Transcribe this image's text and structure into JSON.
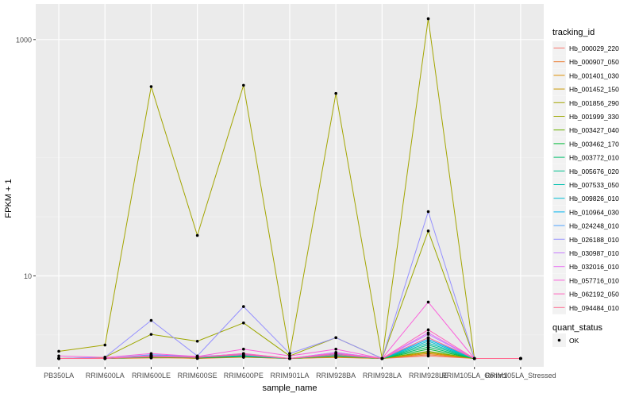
{
  "chart_data": {
    "type": "line",
    "title": "",
    "xlabel": "sample_name",
    "ylabel": "FPKM + 1",
    "y_scale": "log10",
    "ylim": [
      1.7,
      2000
    ],
    "y_ticks": [
      10,
      1000
    ],
    "categories": [
      "PB350LA",
      "RRIM600LA",
      "RRIM600LE",
      "RRIM600SE",
      "RRIM600PE",
      "RRIM901LA",
      "RRIM928BA",
      "RRIM928LA",
      "RRIM928LE",
      "RRIM105LA_Control",
      "RRIM105LA_Stressed"
    ],
    "legend_title": "tracking_id",
    "legend2_title": "quant_status",
    "legend2_items": [
      "OK"
    ],
    "legend_position": "right",
    "series": [
      {
        "name": "Hb_000029_220",
        "color": "#F8766D",
        "values": [
          2,
          2,
          2.02,
          2.03,
          2.05,
          2,
          2.04,
          2,
          2.1,
          2,
          2
        ]
      },
      {
        "name": "Hb_000907_050",
        "color": "#EC823C",
        "values": [
          2,
          2,
          2.05,
          2,
          2.05,
          2,
          2.08,
          2,
          2.15,
          2,
          2
        ]
      },
      {
        "name": "Hb_001401_030",
        "color": "#DD8D00",
        "values": [
          2,
          2,
          2.03,
          2.02,
          2.06,
          2,
          2.06,
          2,
          2.2,
          2,
          2
        ]
      },
      {
        "name": "Hb_001452_150",
        "color": "#CA9700",
        "values": [
          2,
          2.02,
          2.05,
          2.04,
          2.08,
          2,
          2.05,
          2,
          2.25,
          2,
          2
        ]
      },
      {
        "name": "Hb_001856_290",
        "color": "#A3A500",
        "values": [
          2.3,
          2.6,
          400,
          22,
          410,
          2.2,
          350,
          2,
          1500,
          2,
          2
        ]
      },
      {
        "name": "Hb_001999_330",
        "color": "#9DA700",
        "values": [
          2,
          2.05,
          3.2,
          2.8,
          4.0,
          2.1,
          3.0,
          2,
          24,
          2,
          2
        ]
      },
      {
        "name": "Hb_003427_040",
        "color": "#6BB100",
        "values": [
          2,
          2,
          2.05,
          2.03,
          2.1,
          2,
          2.1,
          2,
          2.3,
          2,
          2
        ]
      },
      {
        "name": "Hb_003462_170",
        "color": "#00BA38",
        "values": [
          2,
          2,
          2.08,
          2.02,
          2.08,
          2,
          2.12,
          2,
          2.4,
          2,
          2
        ]
      },
      {
        "name": "Hb_003772_010",
        "color": "#00BE6C",
        "values": [
          2,
          2,
          2.06,
          2.05,
          2.1,
          2,
          2.1,
          2,
          2.5,
          2,
          2
        ]
      },
      {
        "name": "Hb_005676_020",
        "color": "#00C08E",
        "values": [
          2,
          2,
          2.1,
          2.04,
          2.12,
          2,
          2.15,
          2,
          2.6,
          2,
          2
        ]
      },
      {
        "name": "Hb_007533_050",
        "color": "#00C0AF",
        "values": [
          2,
          2,
          2.07,
          2.06,
          2.1,
          2,
          2.12,
          2,
          2.7,
          2,
          2
        ]
      },
      {
        "name": "Hb_009826_010",
        "color": "#00BCD4",
        "values": [
          2,
          2,
          2.1,
          2.05,
          2.12,
          2,
          2.18,
          2,
          2.8,
          2,
          2
        ]
      },
      {
        "name": "Hb_010964_030",
        "color": "#00B4F0",
        "values": [
          2,
          2,
          2.12,
          2.06,
          2.15,
          2,
          2.2,
          2,
          2.9,
          2,
          2
        ]
      },
      {
        "name": "Hb_024248_010",
        "color": "#4DA3FF",
        "values": [
          2,
          2,
          2.15,
          2.08,
          2.18,
          2,
          2.25,
          2,
          3.0,
          2,
          2
        ]
      },
      {
        "name": "Hb_026188_010",
        "color": "#9590FF",
        "values": [
          2,
          2.05,
          4.2,
          2.1,
          5.5,
          2.2,
          3.0,
          2,
          35,
          2,
          2
        ]
      },
      {
        "name": "Hb_030987_010",
        "color": "#C77CFF",
        "values": [
          2,
          2,
          2.1,
          2.05,
          2.15,
          2,
          2.2,
          2,
          3.2,
          2,
          2
        ]
      },
      {
        "name": "Hb_032016_010",
        "color": "#E76BF3",
        "values": [
          2,
          2,
          2.12,
          2.05,
          2.2,
          2,
          2.25,
          2,
          3.3,
          2,
          2
        ]
      },
      {
        "name": "Hb_057716_010",
        "color": "#FA62DB",
        "values": [
          2.1,
          2.04,
          2.2,
          2.08,
          2.4,
          2.1,
          2.4,
          2,
          6.0,
          2,
          2
        ]
      },
      {
        "name": "Hb_062192_050",
        "color": "#FF62BC",
        "values": [
          2,
          2,
          2.1,
          2.05,
          2.2,
          2,
          2.2,
          2,
          3.5,
          2,
          2
        ]
      },
      {
        "name": "Hb_094484_010",
        "color": "#FF6C91",
        "values": [
          2,
          2,
          2.08,
          2.04,
          2.15,
          2,
          2.15,
          2,
          3.0,
          2,
          2
        ]
      }
    ]
  }
}
